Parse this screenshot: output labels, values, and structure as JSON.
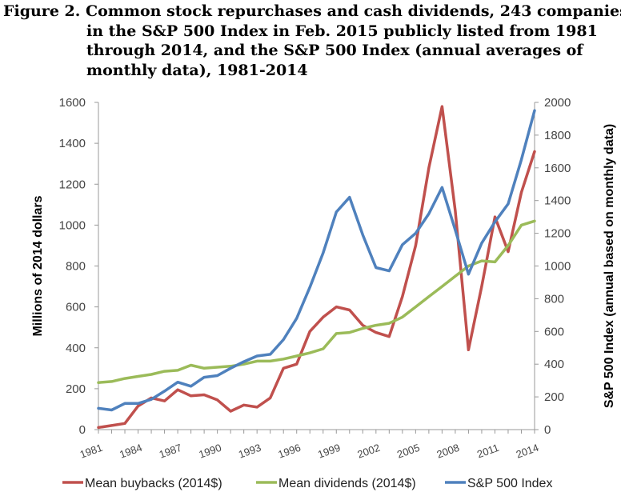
{
  "title_lines": [
    "Figure 2. Common stock repurchases and cash dividends, 243 companies",
    "in the S&P 500 Index in Feb. 2015 publicly listed from 1981",
    "through 2014, and the S&P 500 Index (annual averages of",
    "monthly data), 1981-2014"
  ],
  "chart_data": {
    "type": "line",
    "ylabel": "Millions of 2014 dollars",
    "y2label": "S&P 500 Index (annual based on monthly data)",
    "ylim": [
      0,
      1600
    ],
    "y2lim": [
      0,
      2000
    ],
    "yticks": [
      0,
      200,
      400,
      600,
      800,
      1000,
      1200,
      1400,
      1600
    ],
    "y2ticks": [
      0,
      200,
      400,
      600,
      800,
      1000,
      1200,
      1400,
      1600,
      1800,
      2000
    ],
    "x": [
      1981,
      1982,
      1983,
      1984,
      1985,
      1986,
      1987,
      1988,
      1989,
      1990,
      1991,
      1992,
      1993,
      1994,
      1995,
      1996,
      1997,
      1998,
      1999,
      2000,
      2001,
      2002,
      2003,
      2004,
      2005,
      2006,
      2007,
      2008,
      2009,
      2010,
      2011,
      2012,
      2013,
      2014
    ],
    "xticks": [
      1981,
      1984,
      1987,
      1990,
      1993,
      1996,
      1999,
      2002,
      2005,
      2008,
      2011,
      2014
    ],
    "grid": false,
    "legend": "bottom",
    "series": [
      {
        "name": "Mean buybacks (2014$)",
        "axis": "left",
        "color": "#c0504d",
        "values": [
          10,
          20,
          30,
          115,
          155,
          140,
          195,
          165,
          170,
          145,
          90,
          120,
          110,
          155,
          300,
          320,
          480,
          550,
          600,
          585,
          510,
          475,
          455,
          650,
          900,
          1280,
          1580,
          1070,
          390,
          700,
          1040,
          870,
          1160,
          1360
        ]
      },
      {
        "name": "Mean dividends (2014$)",
        "axis": "left",
        "color": "#9bbb59",
        "values": [
          230,
          235,
          250,
          260,
          270,
          285,
          290,
          315,
          300,
          305,
          310,
          320,
          335,
          335,
          345,
          360,
          375,
          395,
          470,
          475,
          495,
          510,
          520,
          550,
          600,
          650,
          700,
          750,
          800,
          825,
          820,
          900,
          1000,
          1020
        ]
      },
      {
        "name": "S&P 500 Index",
        "axis": "right",
        "color": "#4f81bd",
        "values": [
          130,
          120,
          160,
          160,
          185,
          235,
          290,
          265,
          320,
          330,
          375,
          415,
          450,
          460,
          550,
          680,
          870,
          1080,
          1330,
          1420,
          1190,
          990,
          970,
          1130,
          1200,
          1320,
          1480,
          1220,
          950,
          1140,
          1270,
          1380,
          1650,
          1950
        ]
      }
    ]
  }
}
